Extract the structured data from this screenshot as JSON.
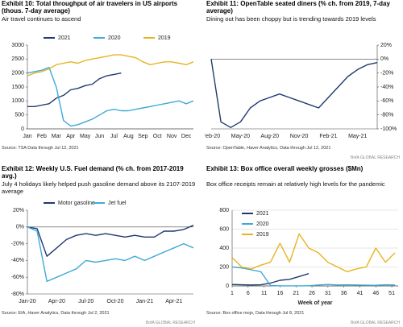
{
  "chart_data": [
    {
      "type": "line",
      "title": "Exhibit 10: Total throughput of air travelers in US airports (thous. 7-day average)",
      "subtitle": "Air travel continues to ascend",
      "categories": [
        "Jan",
        null,
        "Feb",
        null,
        "Mar",
        null,
        "Apr",
        null,
        "May",
        null,
        "Jun",
        null,
        "Jul",
        null,
        "Aug",
        null,
        "Sep",
        null,
        "Oct",
        null,
        "Nov",
        null,
        "Dec",
        null
      ],
      "series": [
        {
          "name": "2021",
          "color": "#1f3a6e",
          "values": [
            800,
            800,
            850,
            900,
            1100,
            1200,
            1400,
            1450,
            1550,
            1600,
            1800,
            1900,
            1950,
            2000,
            null,
            null,
            null,
            null,
            null,
            null,
            null,
            null,
            null,
            null
          ]
        },
        {
          "name": "2020",
          "color": "#3fa9d8",
          "values": [
            2000,
            2050,
            2100,
            2200,
            1500,
            300,
            100,
            150,
            250,
            350,
            500,
            650,
            700,
            650,
            650,
            700,
            750,
            800,
            850,
            900,
            950,
            1000,
            900,
            1000
          ]
        },
        {
          "name": "2019",
          "color": "#e6b422",
          "values": [
            1900,
            2000,
            2050,
            2150,
            2300,
            2350,
            2400,
            2350,
            2450,
            2500,
            2550,
            2600,
            2650,
            2650,
            2600,
            2550,
            2400,
            2300,
            2350,
            2400,
            2400,
            2350,
            2300,
            2400
          ]
        }
      ],
      "ylim": [
        0,
        3000
      ],
      "yticks": [
        0,
        500,
        1000,
        1500,
        2000,
        2500,
        3000
      ],
      "legend": "top",
      "grid": false,
      "source": "Source: TSA Data through Jul 12, 2021"
    },
    {
      "type": "line",
      "title": "Exhibit 11: OpenTable seated diners (% ch. from 2019, 7-day average)",
      "subtitle": "Dining out has been choppy but is trending towards 2019 levels",
      "categories": [
        "Feb-20",
        null,
        null,
        "May-20",
        null,
        null,
        "Aug-20",
        null,
        null,
        "Nov-20",
        null,
        null,
        "Feb-21",
        null,
        null,
        "May-21",
        null,
        null
      ],
      "series": [
        {
          "color": "#1f3a6e",
          "values": [
            0,
            -90,
            -98,
            -90,
            -70,
            -60,
            -55,
            -50,
            -55,
            -60,
            -65,
            -70,
            -55,
            -40,
            -25,
            -15,
            -8,
            -5
          ]
        }
      ],
      "ylim": [
        -100,
        20
      ],
      "yticks": [
        {
          "value": -100,
          "label": "-100%"
        },
        {
          "value": -80,
          "label": "-80%"
        },
        {
          "value": -60,
          "label": "-60%"
        },
        {
          "value": -40,
          "label": "-40%"
        },
        {
          "value": -20,
          "label": "-20%"
        },
        {
          "value": 0,
          "label": "0%"
        },
        {
          "value": 20,
          "label": "20%"
        }
      ],
      "y_axis": "right",
      "grid": false,
      "source": "Source: OpenTable, Haver Analytics, Data through Jul 12, 2021",
      "brand": "BofA GLOBAL RESEARCH"
    },
    {
      "type": "line",
      "title": "Exhibit 12: Weekly U.S. Fuel demand (% ch. from 2017-2019  avg.)",
      "subtitle": "July 4 holidays likely helped push gasoline demand above its 2107-2019 average",
      "categories": [
        "Jan-20",
        null,
        null,
        "Apr-20",
        null,
        null,
        "Jul-20",
        null,
        null,
        "Oct-20",
        null,
        null,
        "Jan-21",
        null,
        null,
        "Apr-21",
        null,
        null
      ],
      "series": [
        {
          "name": "Motor gasoline",
          "color": "#1f3a6e",
          "values": [
            0,
            -2,
            -35,
            -25,
            -15,
            -10,
            -8,
            -10,
            -8,
            -10,
            -12,
            -10,
            -12,
            -12,
            -5,
            -5,
            -3,
            2
          ]
        },
        {
          "name": "Jet fuel",
          "color": "#3fa9d8",
          "values": [
            0,
            -5,
            -65,
            -60,
            -55,
            -50,
            -40,
            -42,
            -40,
            -38,
            -40,
            -35,
            -40,
            -35,
            -30,
            -25,
            -20,
            -25
          ]
        }
      ],
      "ylim": [
        -80,
        20
      ],
      "yticks": [
        {
          "value": -80,
          "label": "-80%"
        },
        {
          "value": -60,
          "label": "-60%"
        },
        {
          "value": -40,
          "label": "-40%"
        },
        {
          "value": -20,
          "label": "-20%"
        },
        {
          "value": 0,
          "label": "0%"
        },
        {
          "value": 20,
          "label": "20%"
        }
      ],
      "legend": "top",
      "grid": false,
      "source": "Source: EIA, Haver Analytics, Data through Jul 2, 2021",
      "brand": "BofA GLOBAL RESEARCH"
    },
    {
      "type": "line",
      "title": "Exhibit 13: Box office overall weekly grosses ($Mn)",
      "subtitle": "Box office receipts remain at relatively high levels for the pandemic",
      "x": [
        1,
        4,
        7,
        10,
        13,
        16,
        19,
        22,
        25,
        28,
        31,
        34,
        37,
        40,
        43,
        46,
        49,
        52
      ],
      "series": [
        {
          "name": "2021",
          "color": "#1f3a6e",
          "values": [
            15,
            12,
            10,
            12,
            30,
            60,
            70,
            100,
            130,
            null,
            null,
            null,
            null,
            null,
            null,
            null,
            null,
            null
          ]
        },
        {
          "name": "2020",
          "color": "#3fa9d8",
          "values": [
            200,
            190,
            170,
            150,
            5,
            1,
            1,
            1,
            2,
            10,
            15,
            10,
            12,
            10,
            8,
            7,
            12,
            10
          ]
        },
        {
          "name": "2019",
          "color": "#e6b422",
          "values": [
            300,
            200,
            180,
            220,
            250,
            450,
            250,
            550,
            400,
            350,
            250,
            200,
            150,
            180,
            200,
            400,
            250,
            350
          ]
        }
      ],
      "xlim": [
        1,
        53
      ],
      "xticks": [
        1,
        6,
        11,
        16,
        21,
        26,
        31,
        36,
        41,
        46,
        51
      ],
      "xlabel": "Week of year",
      "ylim": [
        0,
        800
      ],
      "yticks": [
        0,
        200,
        400,
        600,
        800
      ],
      "legend": "upper left",
      "grid": true,
      "source": "Source: Box office mojo, Data through Jul 8, 2021",
      "brand": "BofA GLOBAL RESEARCH"
    }
  ]
}
